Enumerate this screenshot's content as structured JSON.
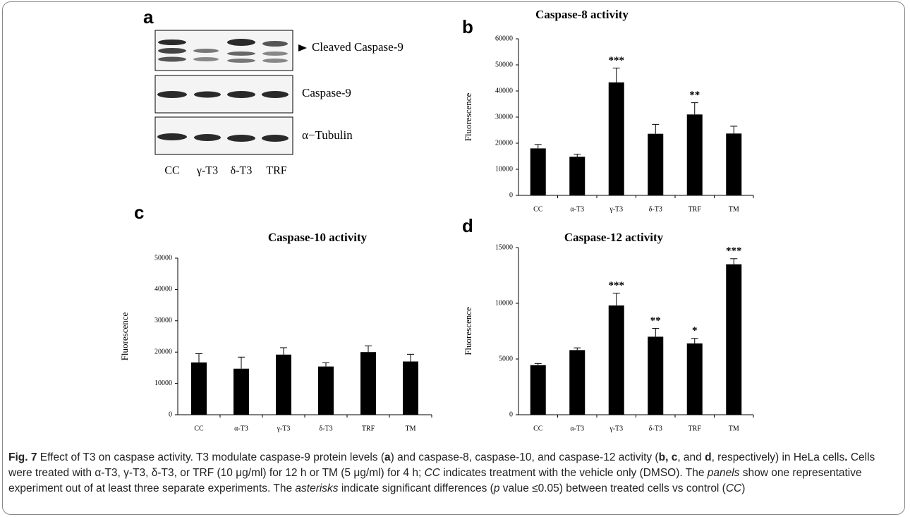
{
  "blot": {
    "panel": "a",
    "rows": [
      "Cleaved Caspase-9",
      "Caspase-9",
      "α−Tubulin"
    ],
    "lanes": [
      "CC",
      "γ-T3",
      "δ-T3",
      "TRF"
    ]
  },
  "chart_data": [
    {
      "type": "bar",
      "panel": "b",
      "title": "Caspase-8 activity",
      "y_label": "Fluorescence",
      "categories": [
        "CC",
        "α-T3",
        "γ-T3",
        "δ-T3",
        "TRF",
        "TM"
      ],
      "values": [
        18000,
        14800,
        43300,
        23600,
        31000,
        23700
      ],
      "errors": [
        1500,
        1000,
        5500,
        3600,
        4500,
        2800
      ],
      "significance": [
        null,
        null,
        "***",
        null,
        "**",
        null
      ],
      "color": "#000000",
      "ylim": [
        0,
        60000
      ],
      "yticks": [
        0,
        10000,
        20000,
        30000,
        40000,
        50000,
        60000
      ]
    },
    {
      "type": "bar",
      "panel": "c",
      "title": "Caspase-10 activity",
      "y_label": "Fluorescence",
      "categories": [
        "CC",
        "α-T3",
        "γ-T3",
        "δ-T3",
        "TRF",
        "TM"
      ],
      "values": [
        16700,
        14700,
        19200,
        15400,
        20000,
        17000
      ],
      "errors": [
        2800,
        3700,
        2200,
        1200,
        2000,
        2300
      ],
      "color": "#000000",
      "ylim": [
        0,
        50000
      ],
      "yticks": [
        0,
        10000,
        20000,
        30000,
        40000,
        50000
      ]
    },
    {
      "type": "bar",
      "panel": "d",
      "title": "Caspase-12 activity",
      "y_label": "Fluorescence",
      "categories": [
        "CC",
        "α-T3",
        "γ-T3",
        "δ-T3",
        "TRF",
        "TM"
      ],
      "values": [
        4450,
        5800,
        9800,
        7000,
        6400,
        13500
      ],
      "errors": [
        150,
        200,
        1100,
        750,
        450,
        500
      ],
      "significance": [
        null,
        null,
        "***",
        "**",
        "*",
        "***"
      ],
      "color": "#000000",
      "ylim": [
        0,
        15000
      ],
      "yticks": [
        0,
        5000,
        10000,
        15000
      ]
    }
  ],
  "caption": [
    {
      "text": "Fig. 7",
      "style": "bold"
    },
    {
      "text": " Effect of T3 on caspase activity. T3 modulate caspase-9 protein levels ("
    },
    {
      "text": "a",
      "style": "bold"
    },
    {
      "text": ") and caspase-8, caspase-10, and caspase-12 activity ("
    },
    {
      "text": "b, c",
      "style": "bold"
    },
    {
      "text": ", and "
    },
    {
      "text": "d",
      "style": "bold"
    },
    {
      "text": ", respectively) in HeLa cells"
    },
    {
      "text": ".",
      "style": "bold"
    },
    {
      "text": " Cells were treated with α-T3, γ-T3, δ-T3, or TRF (10 μg/ml) for 12 h or TM (5 μg/ml) for 4 h; "
    },
    {
      "text": "CC",
      "style": "italic"
    },
    {
      "text": " indicates treatment with the vehicle only (DMSO). The "
    },
    {
      "text": "panels",
      "style": "italic"
    },
    {
      "text": " show one representative experiment out of at least three separate experiments. The "
    },
    {
      "text": "asterisks",
      "style": "italic"
    },
    {
      "text": " indicate significant differences ("
    },
    {
      "text": "p",
      "style": "italic"
    },
    {
      "text": " value ≤0.05) between treated cells vs control ("
    },
    {
      "text": "CC",
      "style": "italic"
    },
    {
      "text": ")"
    }
  ]
}
